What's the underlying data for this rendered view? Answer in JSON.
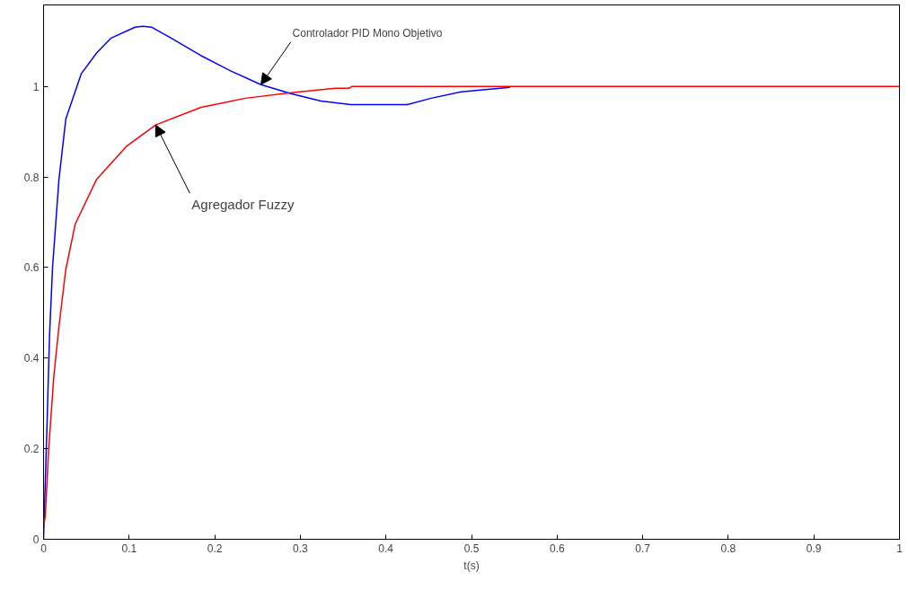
{
  "chart_data": {
    "type": "line",
    "xlabel": "t(s)",
    "xlim": [
      0,
      1
    ],
    "ylim": [
      0,
      1.18
    ],
    "xticks": [
      0,
      0.1,
      0.2,
      0.3,
      0.4,
      0.5,
      0.6,
      0.7,
      0.8,
      0.9,
      1
    ],
    "yticks": [
      0,
      0.2,
      0.4,
      0.6,
      0.8,
      1
    ],
    "grid": false,
    "marker": "none",
    "line_style": "solid",
    "series": [
      {
        "color": "#0000ff",
        "x": [
          0,
          0.004,
          0.007,
          0.0105,
          0.018,
          0.026,
          0.044,
          0.062,
          0.079,
          0.107,
          0.116,
          0.126,
          0.149,
          0.184,
          0.219,
          0.254,
          0.289,
          0.324,
          0.359,
          0.425,
          0.453,
          0.488,
          0.545
        ],
        "values": [
          0,
          0.25,
          0.45,
          0.6,
          0.795,
          0.928,
          1.028,
          1.074,
          1.107,
          1.131,
          1.133,
          1.131,
          1.107,
          1.068,
          1.034,
          1.004,
          0.984,
          0.968,
          0.96,
          0.96,
          0.974,
          0.988,
          0.998
        ]
      },
      {
        "color": "#ff0000",
        "x": [
          0,
          0.002,
          0.006,
          0.012,
          0.018,
          0.026,
          0.037,
          0.062,
          0.097,
          0.131,
          0.184,
          0.236,
          0.289,
          0.341,
          0.357,
          0.36,
          1
        ],
        "values": [
          0.03,
          0.05,
          0.2,
          0.36,
          0.47,
          0.596,
          0.696,
          0.795,
          0.868,
          0.915,
          0.954,
          0.974,
          0.986,
          0.996,
          0.996,
          1,
          1
        ]
      }
    ],
    "annotations": [
      {
        "text": "Controlador PID Mono Objetivo",
        "x": 0.254,
        "y": 1.004
      },
      {
        "text": "Agregador Fuzzy",
        "x": 0.131,
        "y": 0.915
      }
    ]
  }
}
